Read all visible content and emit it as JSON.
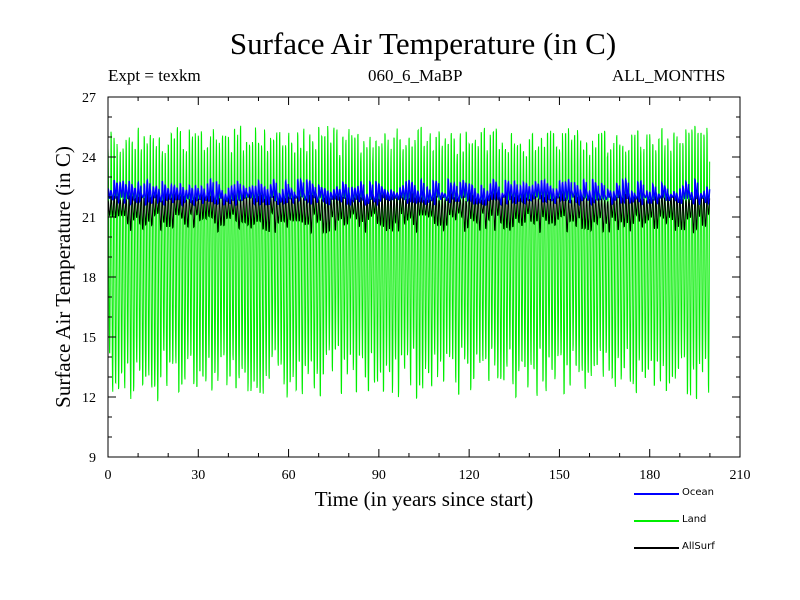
{
  "header": {
    "title": "Surface Air Temperature (in C)",
    "experiment": "Expt = texkm",
    "run": "060_6_MaBP",
    "months": "ALL_MONTHS"
  },
  "legend": [
    {
      "label": "Ocean",
      "color": "#0000ff"
    },
    {
      "label": "Land",
      "color": "#00ee00"
    },
    {
      "label": "AllSurf",
      "color": "#000000"
    }
  ],
  "chart_data": {
    "type": "line",
    "title": "Surface Air Temperature (in C)",
    "xlabel": "Time (in years since start)",
    "ylabel": "Surface Air Temperature (in C)",
    "xlim": [
      0,
      210
    ],
    "ylim": [
      9,
      27
    ],
    "xticks": [
      0,
      30,
      60,
      90,
      120,
      150,
      180,
      210
    ],
    "yticks": [
      9,
      12,
      15,
      18,
      21,
      24,
      27
    ],
    "years": 200,
    "series": [
      {
        "name": "Land",
        "color": "#00ee00",
        "annual_mean": 18.7,
        "monthly_max_range": [
          24.3,
          25.6
        ],
        "monthly_min_range": [
          11.8,
          14.3
        ]
      },
      {
        "name": "AllSurf",
        "color": "#000000",
        "annual_mean": 20.9,
        "monthly_max_range": [
          21.8,
          22.2
        ],
        "monthly_min_range": [
          20.2,
          21.2
        ]
      },
      {
        "name": "Ocean",
        "color": "#0000ff",
        "annual_mean": 22.1,
        "monthly_max_range": [
          22.1,
          22.9
        ],
        "monthly_min_range": [
          21.6,
          22.0
        ]
      }
    ]
  }
}
